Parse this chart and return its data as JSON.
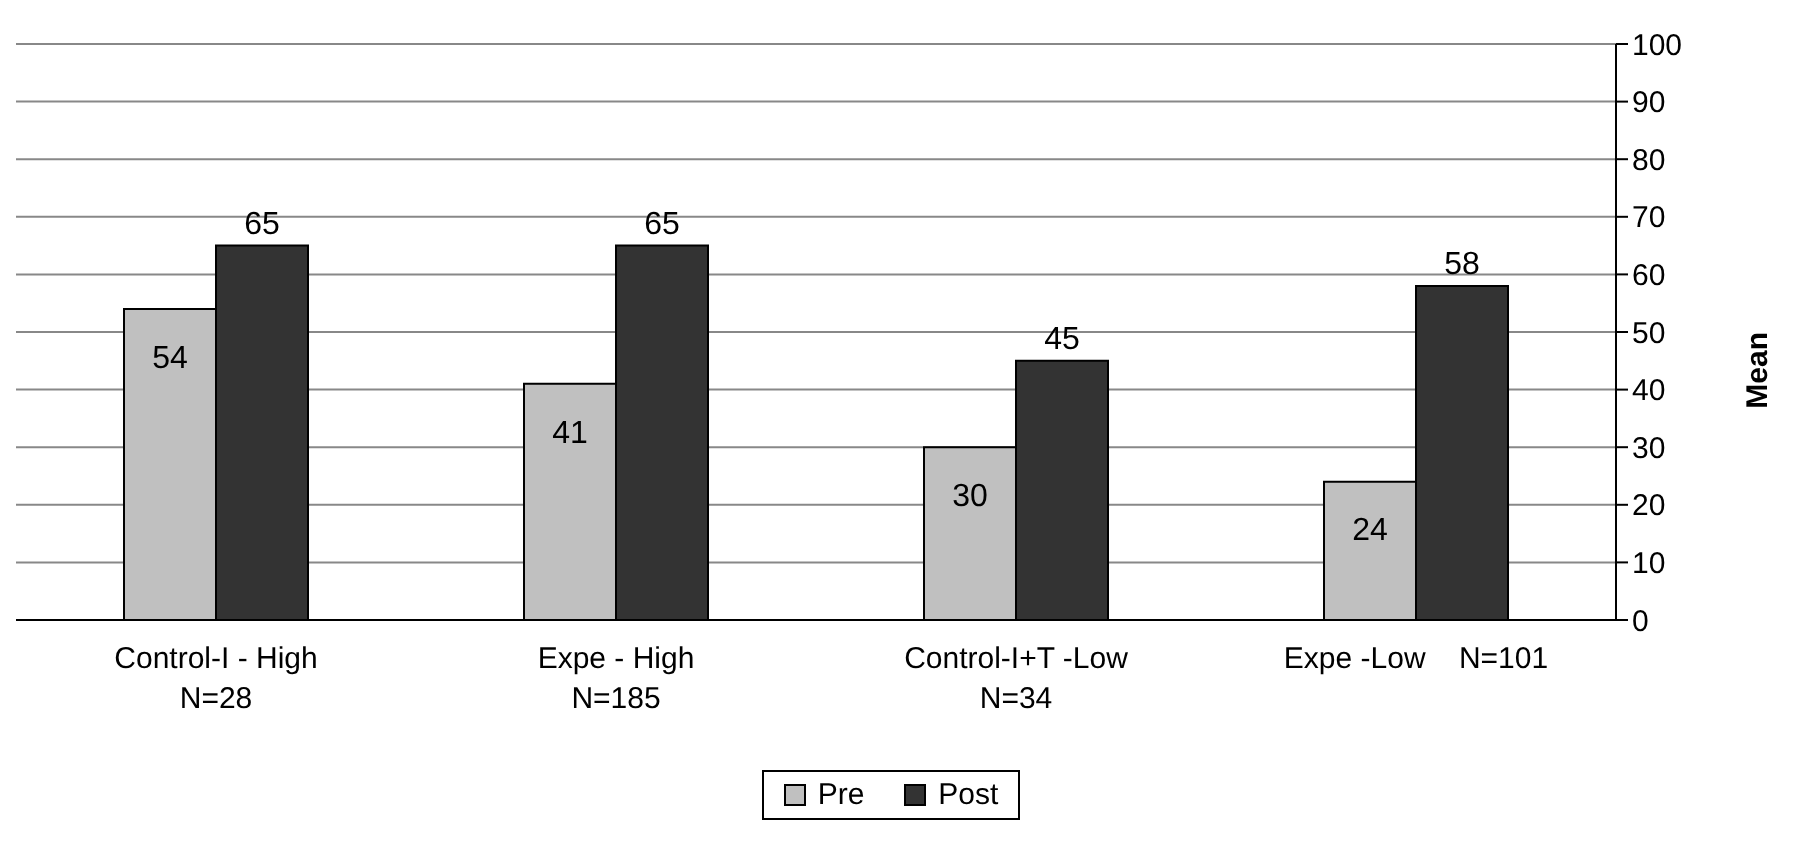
{
  "chart_data": {
    "type": "bar",
    "ylabel": "Mean",
    "categories": [
      "Control-I - High\nN=28",
      "Expe - High\nN=185",
      "Control-I+T -Low\nN=34",
      "Expe -Low    N=101"
    ],
    "series": [
      {
        "name": "Pre",
        "color": "#c0c0c0",
        "values": [
          54,
          41,
          30,
          24
        ]
      },
      {
        "name": "Post",
        "color": "#333333",
        "values": [
          65,
          65,
          45,
          58
        ]
      }
    ],
    "ylim": [
      0,
      100
    ],
    "yticks": [
      0,
      10,
      20,
      30,
      40,
      50,
      60,
      70,
      80,
      90,
      100
    ],
    "grid": "y",
    "legend": "bottom",
    "data_labels": true
  }
}
